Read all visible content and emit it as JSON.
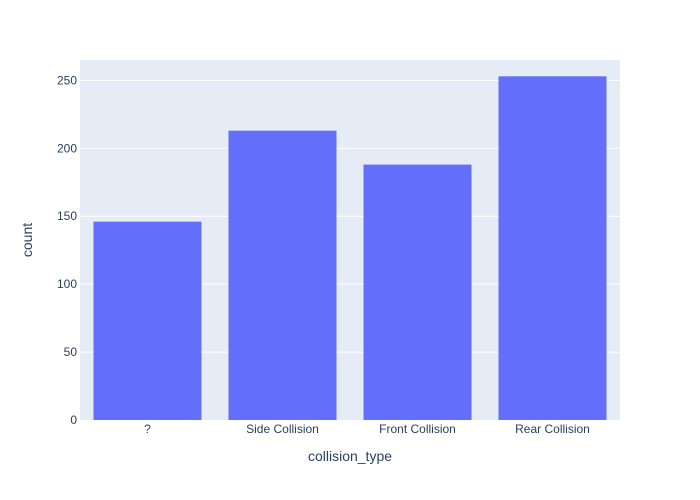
{
  "chart_data": {
    "type": "bar",
    "categories": [
      "?",
      "Side Collision",
      "Front Collision",
      "Rear Collision"
    ],
    "values": [
      146,
      213,
      188,
      253
    ],
    "xlabel": "collision_type",
    "ylabel": "count",
    "ylim": [
      0,
      265
    ],
    "yticks": [
      0,
      50,
      100,
      150,
      200,
      250
    ],
    "grid": true,
    "colors": {
      "bar": "#636efa",
      "plot_background": "#e5ecf6",
      "grid": "#ffffff",
      "text": "#2a3f5f"
    }
  }
}
